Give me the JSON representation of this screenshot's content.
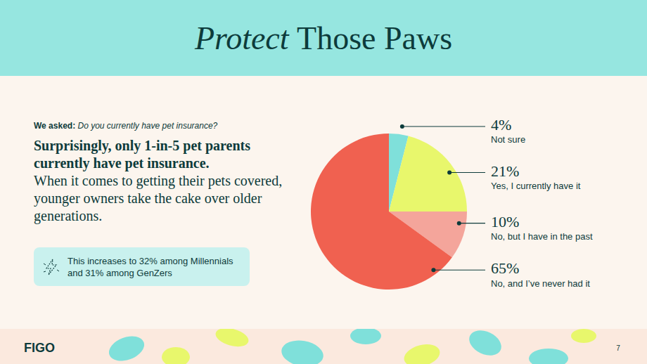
{
  "title": {
    "emphasis": "Protect",
    "rest": "Those Paws"
  },
  "question": {
    "label": "We asked:",
    "text": "Do you currently have pet insurance?"
  },
  "headline": "Surprisingly, only 1-in-5 pet parents currently have pet insurance.",
  "body": "When it comes to getting their pets covered, younger owners take the cake over older generations.",
  "callout": "This increases to 32% among Millennials and 31% among GenZers",
  "footer": {
    "logo": "FIGO",
    "page": "7"
  },
  "chart_data": {
    "type": "pie",
    "categories": [
      "Not sure",
      "Yes, I currently have it",
      "No, but I have in the past",
      "No, and I’ve never had it"
    ],
    "values": [
      4,
      21,
      10,
      65
    ],
    "value_labels": [
      "4%",
      "21%",
      "10%",
      "65%"
    ],
    "colors": [
      "#7fe0da",
      "#e8f76c",
      "#f4a59b",
      "#f06150"
    ],
    "data_labels": true
  }
}
